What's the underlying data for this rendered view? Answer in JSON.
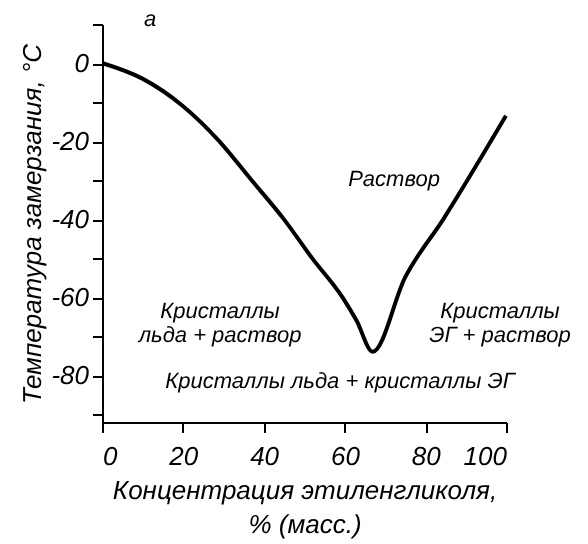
{
  "chart_data": {
    "type": "line",
    "xlabel": "Концентрация этиленгликоля,\n% (масс.)",
    "ylabel": "Температура замерзания, °С",
    "x": [
      0,
      10,
      20,
      29,
      37,
      45,
      52,
      59.5,
      63,
      67,
      75,
      84.5,
      100
    ],
    "series": [
      {
        "color": "#000000",
        "values": [
          0,
          -4,
          -11,
          -20,
          -30,
          -40,
          -50,
          -60,
          -66,
          -74,
          -55,
          -40,
          -13.5
        ]
      }
    ],
    "xlim": [
      0,
      100
    ],
    "ylim": [
      -92,
      10
    ],
    "xticks": [
      0,
      20,
      40,
      60,
      80,
      100
    ],
    "yticks": [
      {
        "value": 10,
        "label": null
      },
      0,
      {
        "value": -10,
        "label": null
      },
      -20,
      {
        "value": -30,
        "label": null
      },
      -40,
      {
        "value": -50,
        "label": null
      },
      -60,
      {
        "value": -70,
        "label": null
      },
      -80,
      {
        "value": -90,
        "label": null
      }
    ],
    "annotations": [
      "а",
      "Раствор",
      "Кристаллы\nльда + раствор",
      "Кристаллы\nЭГ + раствор",
      "Кристаллы  льда + кристаллы ЭГ"
    ],
    "grid": false,
    "marker": "none",
    "line_style": "solid"
  }
}
